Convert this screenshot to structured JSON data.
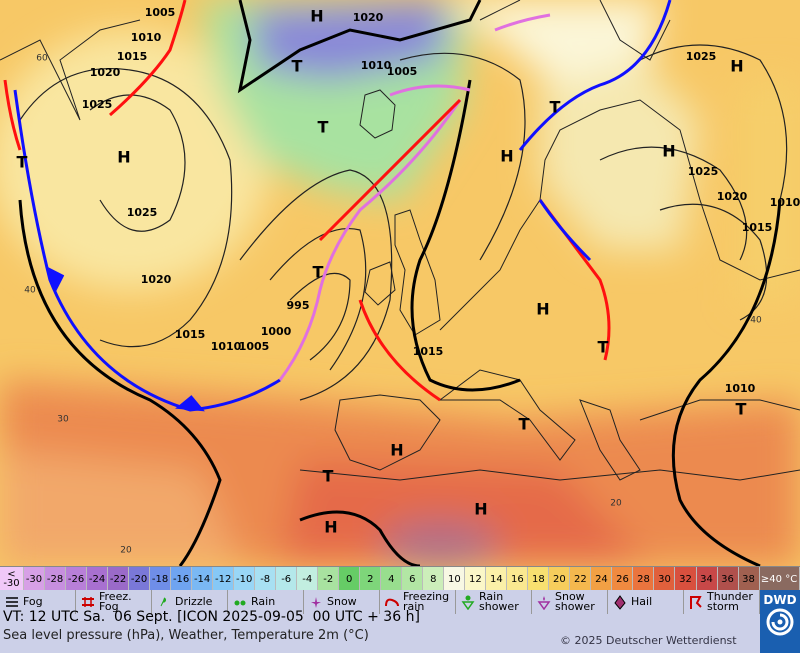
{
  "map": {
    "pressure_centers": [
      "H",
      "H",
      "H",
      "H",
      "H",
      "H",
      "H",
      "H",
      "H",
      "T",
      "T",
      "T",
      "T",
      "T",
      "T",
      "T",
      "T",
      "T"
    ],
    "isobar_labels": [
      1005,
      1010,
      1015,
      1020,
      1025,
      1025,
      1020,
      1015,
      1010,
      1005,
      1000,
      995,
      1015,
      1020,
      1010,
      1005,
      1025,
      1025,
      1020,
      1015,
      1010,
      1010
    ],
    "latitude_labels": [
      60,
      40,
      30,
      20,
      20,
      40
    ]
  },
  "color_scale": {
    "low_label": "< -30",
    "high_label": "≥40 °C",
    "low_color": "#f0c8f8",
    "high_color": "#8a6a60",
    "values": [
      -30,
      -28,
      -26,
      -24,
      -22,
      -20,
      -18,
      -16,
      -14,
      -12,
      -10,
      -8,
      -6,
      -4,
      -2,
      0,
      2,
      4,
      6,
      8,
      10,
      12,
      14,
      16,
      18,
      20,
      22,
      24,
      26,
      28,
      30,
      32,
      34,
      36,
      38
    ],
    "colors": [
      "#d7a0e6",
      "#c78fdf",
      "#b87fd8",
      "#a870d0",
      "#9a6ac8",
      "#7a78d8",
      "#6f8ee8",
      "#6fa4f0",
      "#7ab8f4",
      "#86c8f6",
      "#99d6f6",
      "#a8e0f2",
      "#b4e8ea",
      "#c2eee0",
      "#a8e2a0",
      "#66cc66",
      "#7ed67a",
      "#98de8e",
      "#b2e6a4",
      "#cceeba",
      "#f8f8e4",
      "#fbf7c8",
      "#fbf0a8",
      "#fae890",
      "#f8e070",
      "#f6cd5c",
      "#f4b84e",
      "#f2a044",
      "#f08a40",
      "#ea743e",
      "#e0603c",
      "#d8503e",
      "#c84848",
      "#b0504c",
      "#a06050"
    ]
  },
  "weather_legend": [
    "Fog",
    "Freez. Fog",
    "Drizzle",
    "Rain",
    "Snow",
    "Freezing rain",
    "Rain shower",
    "Snow shower",
    "Hail",
    "Thunder storm"
  ],
  "footer": {
    "valid_time": "VT: 12 UTC Sa.  06 Sept. [ICON 2025-09-05  00 UTC + 36 h]",
    "description": "Sea level pressure (hPa), Weather, Temperature 2m (°C)",
    "copyright": "© 2025 Deutscher Wetterdienst",
    "logo": "DWD"
  }
}
